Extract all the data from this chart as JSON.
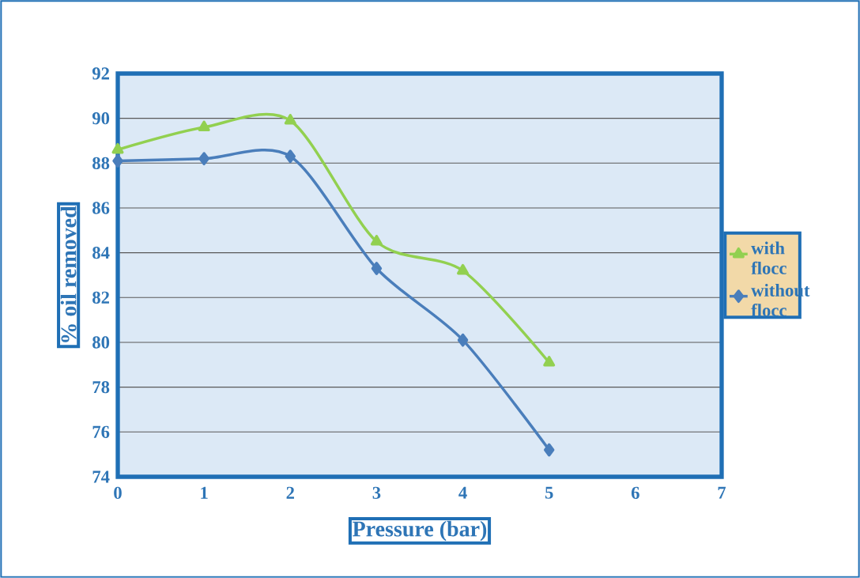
{
  "chart_data": {
    "type": "line",
    "xlabel": "Pressure (bar)",
    "ylabel": "% oil removed",
    "x": [
      0,
      1,
      2,
      3,
      4,
      5
    ],
    "series": [
      {
        "name": "with flocc",
        "color": "#92d050",
        "marker": "triangle",
        "values": [
          88.6,
          89.6,
          89.9,
          84.5,
          83.2,
          79.1
        ]
      },
      {
        "name": "without flocc",
        "color": "#4a7ebb",
        "marker": "diamond",
        "values": [
          88.1,
          88.2,
          88.3,
          83.3,
          80.1,
          75.2
        ]
      }
    ],
    "xlim": [
      0,
      7
    ],
    "xticks": [
      0,
      1,
      2,
      3,
      4,
      5,
      6,
      7
    ],
    "ylim": [
      74,
      92
    ],
    "yticks": [
      74,
      76,
      78,
      80,
      82,
      84,
      86,
      88,
      90,
      92
    ],
    "grid": "y",
    "legend": "right",
    "line_style": "solid"
  }
}
